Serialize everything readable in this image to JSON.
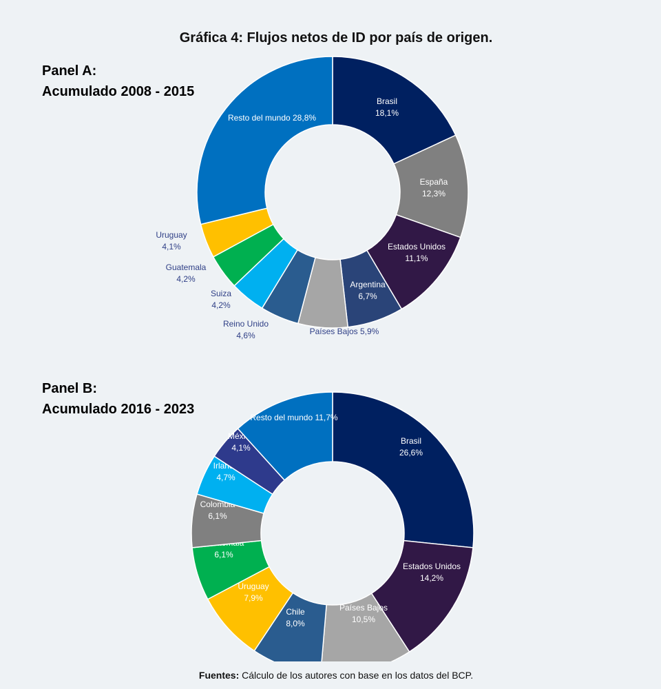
{
  "title": "Gráfica 4: Flujos netos de ID por país de origen.",
  "footnote": {
    "label": "Fuentes:",
    "text": " Cálculo de los autores con base en los datos del BCP."
  },
  "chart_data": [
    {
      "type": "pie",
      "donut": true,
      "heading_line1": "Panel A:",
      "heading_line2": "Acumulado 2008 - 2015",
      "slices": [
        {
          "name": "Brasil",
          "value": 18.1,
          "value_label": "18,1%",
          "color": "#002060"
        },
        {
          "name": "España",
          "value": 12.3,
          "value_label": "12,3%",
          "color": "#808080"
        },
        {
          "name": "Estados Unidos",
          "value": 11.1,
          "value_label": "11,1%",
          "color": "#311846"
        },
        {
          "name": "Argentina",
          "value": 6.7,
          "value_label": "6,7%",
          "color": "#2a4478"
        },
        {
          "name": "Países Bajos",
          "value": 5.9,
          "value_label": "5,9%",
          "color": "#a6a6a6"
        },
        {
          "name": "Reino Unido",
          "value": 4.6,
          "value_label": "4,6%",
          "color": "#2a5c8f"
        },
        {
          "name": "Suiza",
          "value": 4.2,
          "value_label": "4,2%",
          "color": "#00b0f0"
        },
        {
          "name": "Guatemala",
          "value": 4.2,
          "value_label": "4,2%",
          "color": "#00b050"
        },
        {
          "name": "Uruguay",
          "value": 4.1,
          "value_label": "4,1%",
          "color": "#ffc000"
        },
        {
          "name": "Resto del mundo",
          "value": 28.8,
          "value_label": "28,8%",
          "color": "#0070c0"
        }
      ]
    },
    {
      "type": "pie",
      "donut": true,
      "heading_line1": "Panel B:",
      "heading_line2": "Acumulado 2016 - 2023",
      "slices": [
        {
          "name": "Brasil",
          "value": 26.6,
          "value_label": "26,6%",
          "color": "#002060"
        },
        {
          "name": "Estados Unidos",
          "value": 14.2,
          "value_label": "14,2%",
          "color": "#311846"
        },
        {
          "name": "Países Bajos",
          "value": 10.5,
          "value_label": "10,5%",
          "color": "#a6a6a6"
        },
        {
          "name": "Chile",
          "value": 8.0,
          "value_label": "8,0%",
          "color": "#2a5c8f"
        },
        {
          "name": "Uruguay",
          "value": 7.9,
          "value_label": "7,9%",
          "color": "#ffc000"
        },
        {
          "name": "Guatemala",
          "value": 6.1,
          "value_label": "6,1%",
          "color": "#00b050"
        },
        {
          "name": "Colombia",
          "value": 6.1,
          "value_label": "6,1%",
          "color": "#808080"
        },
        {
          "name": "Irlanda",
          "value": 4.7,
          "value_label": "4,7%",
          "color": "#00b0f0"
        },
        {
          "name": "México",
          "value": 4.1,
          "value_label": "4,1%",
          "color": "#2e3a8c"
        },
        {
          "name": "Resto del mundo",
          "value": 11.7,
          "value_label": "11,7%",
          "color": "#0070c0"
        }
      ]
    }
  ]
}
